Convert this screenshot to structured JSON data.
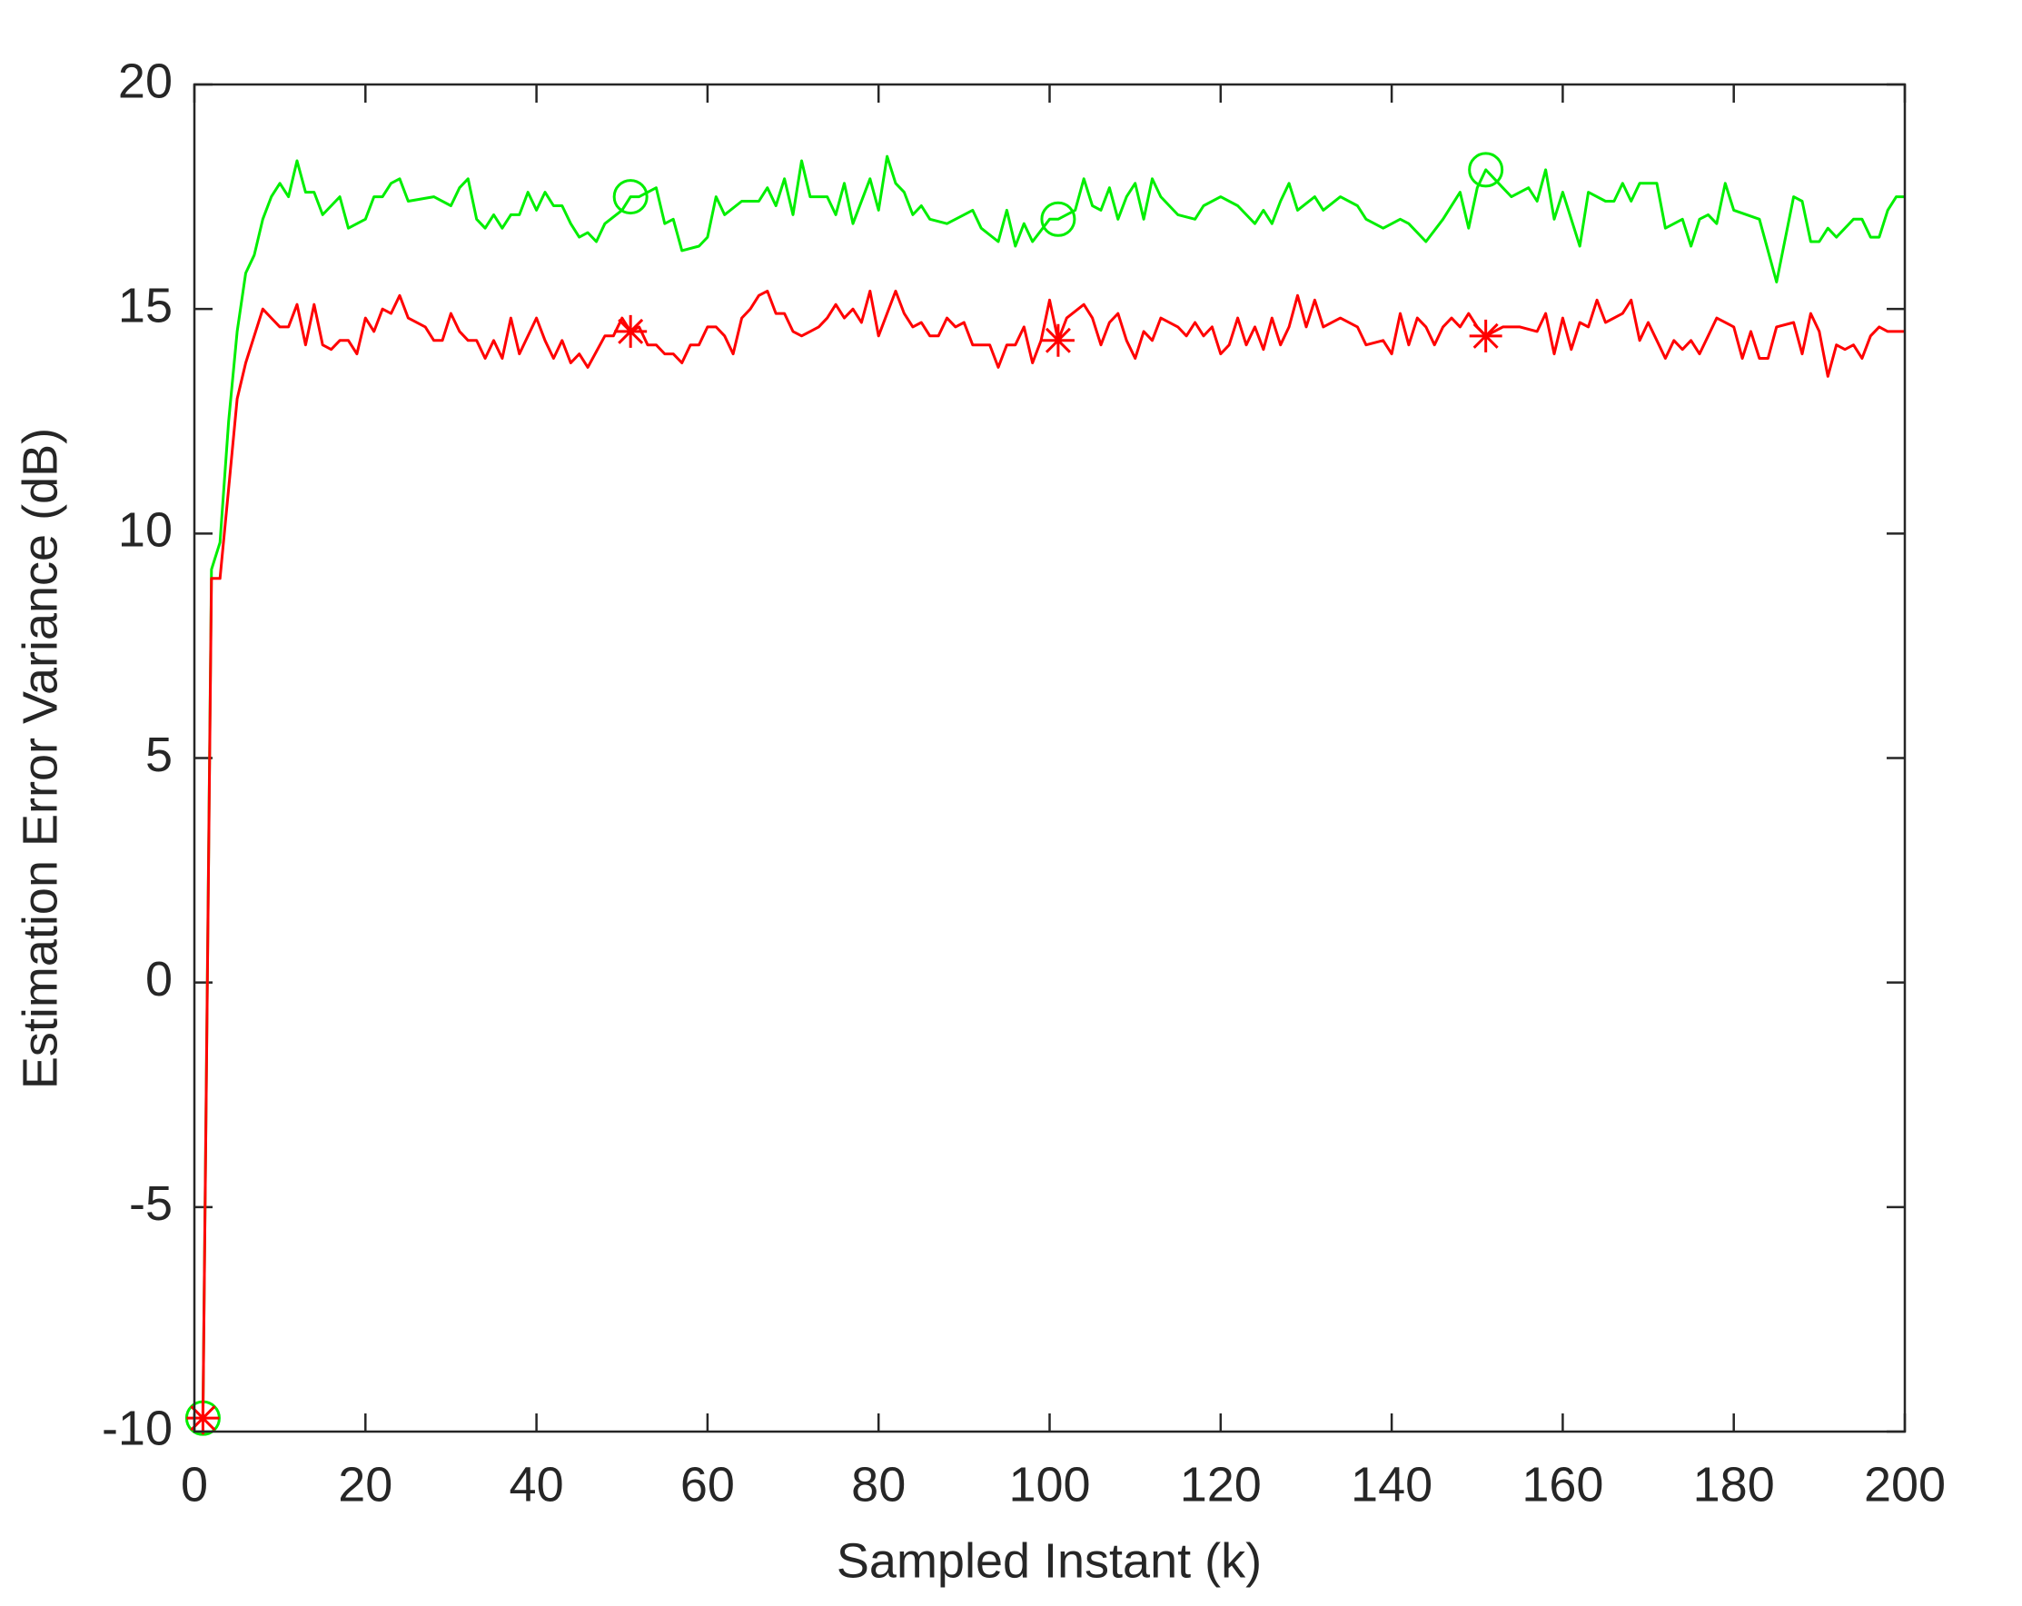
{
  "chart_data": {
    "type": "line",
    "xlabel": "Sampled Instant (k)",
    "ylabel": "Estimation Error Variance (dB)",
    "xlim": [
      0,
      200
    ],
    "xticks": [
      0,
      20,
      40,
      60,
      80,
      100,
      120,
      140,
      160,
      180,
      200
    ],
    "ylim": [
      -10,
      20
    ],
    "yticks": [
      -10,
      -5,
      0,
      5,
      10,
      15,
      20
    ],
    "grid": false,
    "series": [
      {
        "color": "#00ee00",
        "marker": "o",
        "marker_x": [
          1,
          51,
          101,
          151
        ],
        "x": [
          1,
          2,
          3,
          4,
          5,
          6,
          7,
          8,
          9,
          10,
          11,
          12,
          13,
          14,
          15,
          17,
          18,
          20,
          21,
          22,
          23,
          24,
          25,
          28,
          30,
          31,
          32,
          33,
          34,
          35,
          36,
          37,
          38,
          39,
          40,
          41,
          42,
          43,
          44,
          45,
          46,
          47,
          48,
          50,
          51,
          52,
          54,
          55,
          56,
          57,
          59,
          60,
          61,
          62,
          64,
          66,
          67,
          68,
          69,
          70,
          71,
          72,
          74,
          75,
          76,
          77,
          79,
          80,
          81,
          82,
          83,
          84,
          85,
          86,
          88,
          90,
          91,
          92,
          94,
          95,
          96,
          97,
          98,
          100,
          101,
          103,
          104,
          105,
          106,
          107,
          108,
          109,
          110,
          111,
          112,
          113,
          115,
          117,
          118,
          120,
          122,
          124,
          125,
          126,
          127,
          128,
          129,
          131,
          132,
          134,
          136,
          137,
          139,
          141,
          142,
          144,
          146,
          148,
          149,
          150,
          151,
          152,
          154,
          156,
          157,
          158,
          159,
          160,
          162,
          163,
          165,
          166,
          167,
          168,
          169,
          171,
          172,
          174,
          175,
          176,
          177,
          178,
          179,
          180,
          183,
          185,
          187,
          188,
          189,
          190,
          191,
          192,
          194,
          195,
          196,
          197,
          198,
          199,
          200
        ],
        "values": [
          -9.7,
          9.2,
          9.8,
          12.5,
          14.5,
          15.8,
          16.2,
          17.0,
          17.5,
          17.8,
          17.5,
          18.3,
          17.6,
          17.6,
          17.1,
          17.5,
          16.8,
          17.0,
          17.5,
          17.5,
          17.8,
          17.9,
          17.4,
          17.5,
          17.3,
          17.7,
          17.9,
          17.0,
          16.8,
          17.1,
          16.8,
          17.1,
          17.1,
          17.6,
          17.2,
          17.6,
          17.3,
          17.3,
          16.9,
          16.6,
          16.7,
          16.5,
          16.9,
          17.2,
          17.5,
          17.5,
          17.7,
          16.9,
          17.0,
          16.3,
          16.4,
          16.6,
          17.5,
          17.1,
          17.4,
          17.4,
          17.7,
          17.3,
          17.9,
          17.1,
          18.3,
          17.5,
          17.5,
          17.1,
          17.8,
          16.9,
          17.9,
          17.2,
          18.4,
          17.8,
          17.6,
          17.1,
          17.3,
          17.0,
          16.9,
          17.1,
          17.2,
          16.8,
          16.5,
          17.2,
          16.4,
          16.9,
          16.5,
          17.0,
          17.0,
          17.2,
          17.9,
          17.3,
          17.2,
          17.7,
          17.0,
          17.5,
          17.8,
          17.0,
          17.9,
          17.5,
          17.1,
          17.0,
          17.3,
          17.5,
          17.3,
          16.9,
          17.2,
          16.9,
          17.4,
          17.8,
          17.2,
          17.5,
          17.2,
          17.5,
          17.3,
          17.0,
          16.8,
          17.0,
          16.9,
          16.5,
          17.0,
          17.6,
          16.8,
          17.7,
          18.1,
          17.9,
          17.5,
          17.7,
          17.4,
          18.1,
          17.0,
          17.6,
          16.4,
          17.6,
          17.4,
          17.4,
          17.8,
          17.4,
          17.8,
          17.8,
          16.8,
          17.0,
          16.4,
          17.0,
          17.1,
          16.9,
          17.8,
          17.2,
          17.0,
          15.6,
          17.5,
          17.4,
          16.5,
          16.5,
          16.8,
          16.6,
          17.0,
          17.0,
          16.6,
          16.6,
          17.2,
          17.5,
          17.5
        ]
      },
      {
        "color": "#ff0000",
        "marker": "*",
        "marker_x": [
          1,
          51,
          101,
          151
        ],
        "x": [
          1,
          2,
          3,
          4,
          5,
          6,
          7,
          8,
          9,
          10,
          11,
          12,
          13,
          14,
          15,
          16,
          17,
          18,
          19,
          20,
          21,
          22,
          23,
          24,
          25,
          27,
          28,
          29,
          30,
          31,
          32,
          33,
          34,
          35,
          36,
          37,
          38,
          40,
          41,
          42,
          43,
          44,
          45,
          46,
          48,
          49,
          50,
          51,
          52,
          53,
          54,
          55,
          56,
          57,
          58,
          59,
          60,
          61,
          62,
          63,
          64,
          65,
          66,
          67,
          68,
          69,
          70,
          71,
          72,
          73,
          74,
          75,
          76,
          77,
          78,
          79,
          80,
          82,
          83,
          84,
          85,
          86,
          87,
          88,
          89,
          90,
          91,
          93,
          94,
          95,
          96,
          97,
          98,
          99,
          100,
          101,
          102,
          104,
          105,
          106,
          107,
          108,
          109,
          110,
          111,
          112,
          113,
          115,
          116,
          117,
          118,
          119,
          120,
          121,
          122,
          123,
          124,
          125,
          126,
          127,
          128,
          129,
          130,
          131,
          132,
          134,
          136,
          137,
          139,
          140,
          141,
          142,
          143,
          144,
          145,
          146,
          147,
          148,
          149,
          150,
          151,
          153,
          155,
          157,
          158,
          159,
          160,
          161,
          162,
          163,
          164,
          165,
          167,
          168,
          169,
          170,
          171,
          172,
          173,
          174,
          175,
          176,
          177,
          178,
          180,
          181,
          182,
          183,
          184,
          185,
          187,
          188,
          189,
          190,
          191,
          192,
          193,
          194,
          195,
          196,
          197,
          198,
          200
        ],
        "values": [
          -9.7,
          9.0,
          9.0,
          11.0,
          13.0,
          13.8,
          14.4,
          15.0,
          14.8,
          14.6,
          14.6,
          15.1,
          14.2,
          15.1,
          14.2,
          14.1,
          14.3,
          14.3,
          14.0,
          14.8,
          14.5,
          15.0,
          14.9,
          15.3,
          14.8,
          14.6,
          14.3,
          14.3,
          14.9,
          14.5,
          14.3,
          14.3,
          13.9,
          14.3,
          13.9,
          14.8,
          14.0,
          14.8,
          14.3,
          13.9,
          14.3,
          13.8,
          14.0,
          13.7,
          14.4,
          14.4,
          14.8,
          14.5,
          14.6,
          14.2,
          14.2,
          14.0,
          14.0,
          13.8,
          14.2,
          14.2,
          14.6,
          14.6,
          14.4,
          14.0,
          14.8,
          15.0,
          15.3,
          15.4,
          14.9,
          14.9,
          14.5,
          14.4,
          14.5,
          14.6,
          14.8,
          15.1,
          14.8,
          15.0,
          14.7,
          15.4,
          14.4,
          15.4,
          14.9,
          14.6,
          14.7,
          14.4,
          14.4,
          14.8,
          14.6,
          14.7,
          14.2,
          14.2,
          13.7,
          14.2,
          14.2,
          14.6,
          13.8,
          14.3,
          15.2,
          14.3,
          14.8,
          15.1,
          14.8,
          14.2,
          14.7,
          14.9,
          14.3,
          13.9,
          14.5,
          14.3,
          14.8,
          14.6,
          14.4,
          14.7,
          14.4,
          14.6,
          14.0,
          14.2,
          14.8,
          14.2,
          14.6,
          14.1,
          14.8,
          14.2,
          14.6,
          15.3,
          14.6,
          15.2,
          14.6,
          14.8,
          14.6,
          14.2,
          14.3,
          14.0,
          14.9,
          14.2,
          14.8,
          14.6,
          14.2,
          14.6,
          14.8,
          14.6,
          14.9,
          14.6,
          14.4,
          14.6,
          14.6,
          14.5,
          14.9,
          14.0,
          14.8,
          14.1,
          14.7,
          14.6,
          15.2,
          14.7,
          14.9,
          15.2,
          14.3,
          14.7,
          14.3,
          13.9,
          14.3,
          14.1,
          14.3,
          14.0,
          14.4,
          14.8,
          14.6,
          13.9,
          14.5,
          13.9,
          13.9,
          14.6,
          14.7,
          14.0,
          14.9,
          14.5,
          13.5,
          14.2,
          14.1,
          14.2,
          13.9,
          14.4,
          14.6,
          14.5,
          14.5
        ]
      }
    ]
  }
}
